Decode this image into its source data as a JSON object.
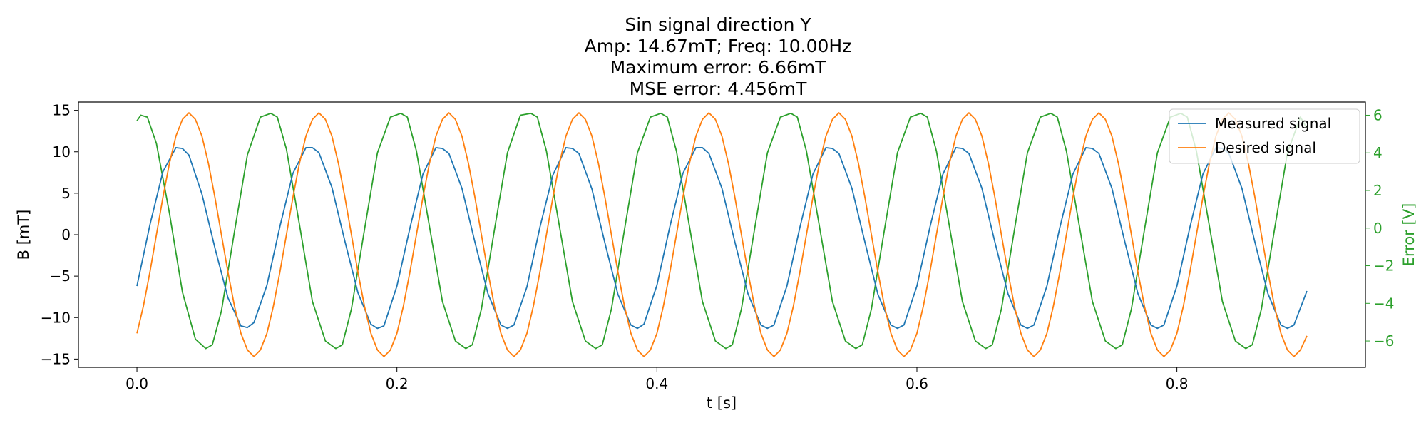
{
  "chart_data": {
    "type": "line",
    "title_lines": [
      "Sin signal direction Y",
      "Amp: 14.67mT; Freq: 10.00Hz",
      "Maximum error: 6.66mT",
      "MSE error: 4.456mT"
    ],
    "xlabel": "t [s]",
    "ylabel": "B [mT]",
    "ylabel_right": "Error [V]",
    "xlim": [
      -0.045,
      0.945
    ],
    "ylim": [
      -16.0,
      16.0
    ],
    "ylim_right": [
      -7.4,
      6.7
    ],
    "x_ticks": [
      {
        "value": 0.0,
        "label": "0.0"
      },
      {
        "value": 0.2,
        "label": "0.2"
      },
      {
        "value": 0.4,
        "label": "0.4"
      },
      {
        "value": 0.6,
        "label": "0.6"
      },
      {
        "value": 0.8,
        "label": "0.8"
      }
    ],
    "y_ticks": [
      {
        "value": 15,
        "label": "15"
      },
      {
        "value": 10,
        "label": "10"
      },
      {
        "value": 5,
        "label": "5"
      },
      {
        "value": 0,
        "label": "0"
      },
      {
        "value": -5,
        "label": "−5"
      },
      {
        "value": -10,
        "label": "−10"
      },
      {
        "value": -15,
        "label": "−15"
      }
    ],
    "y_ticks_right": [
      {
        "value": 6,
        "label": "6"
      },
      {
        "value": 4,
        "label": "4"
      },
      {
        "value": 2,
        "label": "2"
      },
      {
        "value": 0,
        "label": "0"
      },
      {
        "value": -2,
        "label": "−2"
      },
      {
        "value": -4,
        "label": "−4"
      },
      {
        "value": -6,
        "label": "−6"
      }
    ],
    "grid": false,
    "legend_position": "top-right",
    "series": [
      {
        "name": "Measured signal",
        "color": "#1f77b4",
        "axis": "left",
        "x": [
          0.0,
          0.01,
          0.02,
          0.03,
          0.035,
          0.04,
          0.05,
          0.06,
          0.07,
          0.08,
          0.085,
          0.09,
          0.1,
          0.11,
          0.12,
          0.13,
          0.135,
          0.14,
          0.15,
          0.16,
          0.17,
          0.18,
          0.185,
          0.19,
          0.2,
          0.21,
          0.22,
          0.23,
          0.235,
          0.24,
          0.25,
          0.26,
          0.27,
          0.28,
          0.285,
          0.29,
          0.3,
          0.31,
          0.32,
          0.33,
          0.335,
          0.34,
          0.35,
          0.36,
          0.37,
          0.38,
          0.385,
          0.39,
          0.4,
          0.41,
          0.42,
          0.43,
          0.435,
          0.44,
          0.45,
          0.46,
          0.47,
          0.48,
          0.485,
          0.49,
          0.5,
          0.51,
          0.52,
          0.53,
          0.535,
          0.54,
          0.55,
          0.56,
          0.57,
          0.58,
          0.585,
          0.59,
          0.6,
          0.61,
          0.62,
          0.63,
          0.635,
          0.64,
          0.65,
          0.66,
          0.67,
          0.68,
          0.685,
          0.69,
          0.7,
          0.71,
          0.72,
          0.73,
          0.735,
          0.74,
          0.75,
          0.76,
          0.77,
          0.78,
          0.785,
          0.79,
          0.8,
          0.81,
          0.82,
          0.83,
          0.835,
          0.84,
          0.85,
          0.86,
          0.87,
          0.88,
          0.885,
          0.89,
          0.9
        ],
        "y": [
          -6.2,
          1.2,
          7.6,
          10.5,
          10.4,
          9.6,
          4.9,
          -1.6,
          -7.6,
          -11.0,
          -11.2,
          -10.6,
          -6.1,
          1.0,
          7.4,
          10.5,
          10.5,
          9.9,
          5.7,
          -0.8,
          -7.0,
          -10.8,
          -11.3,
          -11.0,
          -6.2,
          0.8,
          7.3,
          10.5,
          10.4,
          9.8,
          5.6,
          -0.9,
          -7.1,
          -10.9,
          -11.3,
          -10.9,
          -6.3,
          0.9,
          7.2,
          10.5,
          10.4,
          9.8,
          5.5,
          -1.0,
          -7.2,
          -10.9,
          -11.3,
          -10.8,
          -6.1,
          1.0,
          7.4,
          10.5,
          10.5,
          9.8,
          5.6,
          -0.9,
          -7.1,
          -10.9,
          -11.3,
          -10.9,
          -6.2,
          0.9,
          7.3,
          10.5,
          10.4,
          9.8,
          5.6,
          -0.9,
          -7.2,
          -10.9,
          -11.3,
          -10.9,
          -6.2,
          0.9,
          7.3,
          10.5,
          10.4,
          9.8,
          5.6,
          -0.9,
          -7.1,
          -10.9,
          -11.3,
          -10.9,
          -6.2,
          0.9,
          7.3,
          10.5,
          10.4,
          9.8,
          5.6,
          -0.9,
          -7.1,
          -10.9,
          -11.3,
          -10.9,
          -6.2,
          0.9,
          7.3,
          10.5,
          10.4,
          9.8,
          5.6,
          -0.9,
          -7.1,
          -10.9,
          -11.3,
          -10.9,
          -6.8
        ]
      },
      {
        "name": "Desired signal",
        "color": "#ff7f0e",
        "axis": "left",
        "x": [
          0.0,
          0.005,
          0.01,
          0.015,
          0.02,
          0.025,
          0.03,
          0.035,
          0.04,
          0.045,
          0.05,
          0.055,
          0.06,
          0.065,
          0.07,
          0.075,
          0.08,
          0.085,
          0.09,
          0.095,
          0.1,
          0.105,
          0.11,
          0.115,
          0.12,
          0.125,
          0.13,
          0.135,
          0.14,
          0.145,
          0.15,
          0.155,
          0.16,
          0.165,
          0.17,
          0.175,
          0.18,
          0.185,
          0.19,
          0.195,
          0.2,
          0.205,
          0.21,
          0.215,
          0.22,
          0.225,
          0.23,
          0.235,
          0.24,
          0.245,
          0.25,
          0.255,
          0.26,
          0.265,
          0.27,
          0.275,
          0.28,
          0.285,
          0.29,
          0.295,
          0.3,
          0.305,
          0.31,
          0.315,
          0.32,
          0.325,
          0.33,
          0.335,
          0.34,
          0.345,
          0.35,
          0.355,
          0.36,
          0.365,
          0.37,
          0.375,
          0.38,
          0.385,
          0.39,
          0.395,
          0.4,
          0.405,
          0.41,
          0.415,
          0.42,
          0.425,
          0.43,
          0.435,
          0.44,
          0.445,
          0.45,
          0.455,
          0.46,
          0.465,
          0.47,
          0.475,
          0.48,
          0.485,
          0.49,
          0.495,
          0.5,
          0.505,
          0.51,
          0.515,
          0.52,
          0.525,
          0.53,
          0.535,
          0.54,
          0.545,
          0.55,
          0.555,
          0.56,
          0.565,
          0.57,
          0.575,
          0.58,
          0.585,
          0.59,
          0.595,
          0.6,
          0.605,
          0.61,
          0.615,
          0.62,
          0.625,
          0.63,
          0.635,
          0.64,
          0.645,
          0.65,
          0.655,
          0.66,
          0.665,
          0.67,
          0.675,
          0.68,
          0.685,
          0.69,
          0.695,
          0.7,
          0.705,
          0.71,
          0.715,
          0.72,
          0.725,
          0.73,
          0.735,
          0.74,
          0.745,
          0.75,
          0.755,
          0.76,
          0.765,
          0.77,
          0.775,
          0.78,
          0.785,
          0.79,
          0.795,
          0.8,
          0.805,
          0.81,
          0.815,
          0.82,
          0.825,
          0.83,
          0.835,
          0.84,
          0.845,
          0.85,
          0.855,
          0.86,
          0.865,
          0.87,
          0.875,
          0.88,
          0.885,
          0.89,
          0.895,
          0.9
        ],
        "y": [
          -11.9,
          -8.6,
          -4.5,
          0.0,
          4.5,
          8.6,
          11.9,
          13.9,
          14.7,
          13.9,
          11.9,
          8.6,
          4.5,
          0.0,
          -4.5,
          -8.6,
          -11.9,
          -13.9,
          -14.7,
          -13.9,
          -11.9,
          -8.6,
          -4.5,
          0.0,
          4.5,
          8.6,
          11.9,
          13.9,
          14.7,
          13.9,
          11.9,
          8.6,
          4.5,
          0.0,
          -4.5,
          -8.6,
          -11.9,
          -13.9,
          -14.7,
          -13.9,
          -11.9,
          -8.6,
          -4.5,
          0.0,
          4.5,
          8.6,
          11.9,
          13.9,
          14.7,
          13.9,
          11.9,
          8.6,
          4.5,
          0.0,
          -4.5,
          -8.6,
          -11.9,
          -13.9,
          -14.7,
          -13.9,
          -11.9,
          -8.6,
          -4.5,
          0.0,
          4.5,
          8.6,
          11.9,
          13.9,
          14.7,
          13.9,
          11.9,
          8.6,
          4.5,
          0.0,
          -4.5,
          -8.6,
          -11.9,
          -13.9,
          -14.7,
          -13.9,
          -11.9,
          -8.6,
          -4.5,
          0.0,
          4.5,
          8.6,
          11.9,
          13.9,
          14.7,
          13.9,
          11.9,
          8.6,
          4.5,
          0.0,
          -4.5,
          -8.6,
          -11.9,
          -13.9,
          -14.7,
          -13.9,
          -11.9,
          -8.6,
          -4.5,
          0.0,
          4.5,
          8.6,
          11.9,
          13.9,
          14.7,
          13.9,
          11.9,
          8.6,
          4.5,
          0.0,
          -4.5,
          -8.6,
          -11.9,
          -13.9,
          -14.7,
          -13.9,
          -11.9,
          -8.6,
          -4.5,
          0.0,
          4.5,
          8.6,
          11.9,
          13.9,
          14.7,
          13.9,
          11.9,
          8.6,
          4.5,
          0.0,
          -4.5,
          -8.6,
          -11.9,
          -13.9,
          -14.7,
          -13.9,
          -11.9,
          -8.6,
          -4.5,
          0.0,
          4.5,
          8.6,
          11.9,
          13.9,
          14.7,
          13.9,
          11.9,
          8.6,
          4.5,
          0.0,
          -4.5,
          -8.6,
          -11.9,
          -13.9,
          -14.7,
          -13.9,
          -11.9,
          -8.6,
          -4.5,
          0.0,
          4.5,
          8.6,
          11.9,
          13.9,
          14.7,
          13.9,
          11.9,
          8.6,
          4.5,
          0.0,
          -4.5,
          -8.6,
          -11.9,
          -13.9,
          -14.7,
          -13.9,
          -12.2
        ]
      },
      {
        "name": "Error",
        "color": "#2ca02c",
        "axis": "right",
        "x": [
          0.0,
          0.003,
          0.008,
          0.015,
          0.025,
          0.035,
          0.045,
          0.053,
          0.058,
          0.065,
          0.075,
          0.085,
          0.095,
          0.103,
          0.108,
          0.115,
          0.125,
          0.135,
          0.145,
          0.153,
          0.158,
          0.165,
          0.175,
          0.185,
          0.195,
          0.203,
          0.208,
          0.215,
          0.225,
          0.235,
          0.245,
          0.253,
          0.258,
          0.265,
          0.275,
          0.285,
          0.295,
          0.303,
          0.308,
          0.315,
          0.325,
          0.335,
          0.345,
          0.353,
          0.358,
          0.365,
          0.375,
          0.385,
          0.395,
          0.403,
          0.408,
          0.415,
          0.425,
          0.435,
          0.445,
          0.453,
          0.458,
          0.465,
          0.475,
          0.485,
          0.495,
          0.503,
          0.508,
          0.515,
          0.525,
          0.535,
          0.545,
          0.553,
          0.558,
          0.565,
          0.575,
          0.585,
          0.595,
          0.603,
          0.608,
          0.615,
          0.625,
          0.635,
          0.645,
          0.653,
          0.658,
          0.665,
          0.675,
          0.685,
          0.695,
          0.703,
          0.708,
          0.715,
          0.725,
          0.735,
          0.745,
          0.753,
          0.758,
          0.765,
          0.775,
          0.785,
          0.795,
          0.803,
          0.808,
          0.815,
          0.825,
          0.835,
          0.845,
          0.853,
          0.858,
          0.865,
          0.875,
          0.885,
          0.895,
          0.9
        ],
        "y": [
          5.7,
          6.0,
          5.9,
          4.5,
          0.8,
          -3.4,
          -5.9,
          -6.4,
          -6.2,
          -4.4,
          -0.2,
          3.9,
          5.9,
          6.1,
          5.9,
          4.2,
          0.2,
          -3.9,
          -6.0,
          -6.4,
          -6.2,
          -4.3,
          -0.1,
          4.0,
          5.9,
          6.1,
          5.9,
          4.1,
          0.1,
          -3.9,
          -6.0,
          -6.4,
          -6.2,
          -4.3,
          -0.1,
          4.0,
          6.0,
          6.1,
          5.9,
          4.1,
          0.1,
          -3.9,
          -6.0,
          -6.4,
          -6.2,
          -4.3,
          -0.1,
          4.0,
          5.9,
          6.1,
          5.9,
          4.1,
          0.1,
          -3.9,
          -6.0,
          -6.4,
          -6.2,
          -4.3,
          -0.1,
          4.0,
          5.9,
          6.1,
          5.9,
          4.1,
          0.1,
          -3.9,
          -6.0,
          -6.4,
          -6.2,
          -4.3,
          -0.1,
          4.0,
          5.9,
          6.1,
          5.9,
          4.1,
          0.1,
          -3.9,
          -6.0,
          -6.4,
          -6.2,
          -4.3,
          -0.1,
          4.0,
          5.9,
          6.1,
          5.9,
          4.1,
          0.1,
          -3.9,
          -6.0,
          -6.4,
          -6.2,
          -4.3,
          -0.1,
          4.0,
          5.9,
          6.1,
          5.9,
          4.1,
          0.1,
          -3.9,
          -6.0,
          -6.4,
          -6.2,
          -4.3,
          -0.1,
          4.0,
          5.9,
          5.3
        ]
      }
    ],
    "legend": [
      {
        "label": "Measured signal",
        "color": "#1f77b4"
      },
      {
        "label": "Desired signal",
        "color": "#ff7f0e"
      }
    ]
  }
}
